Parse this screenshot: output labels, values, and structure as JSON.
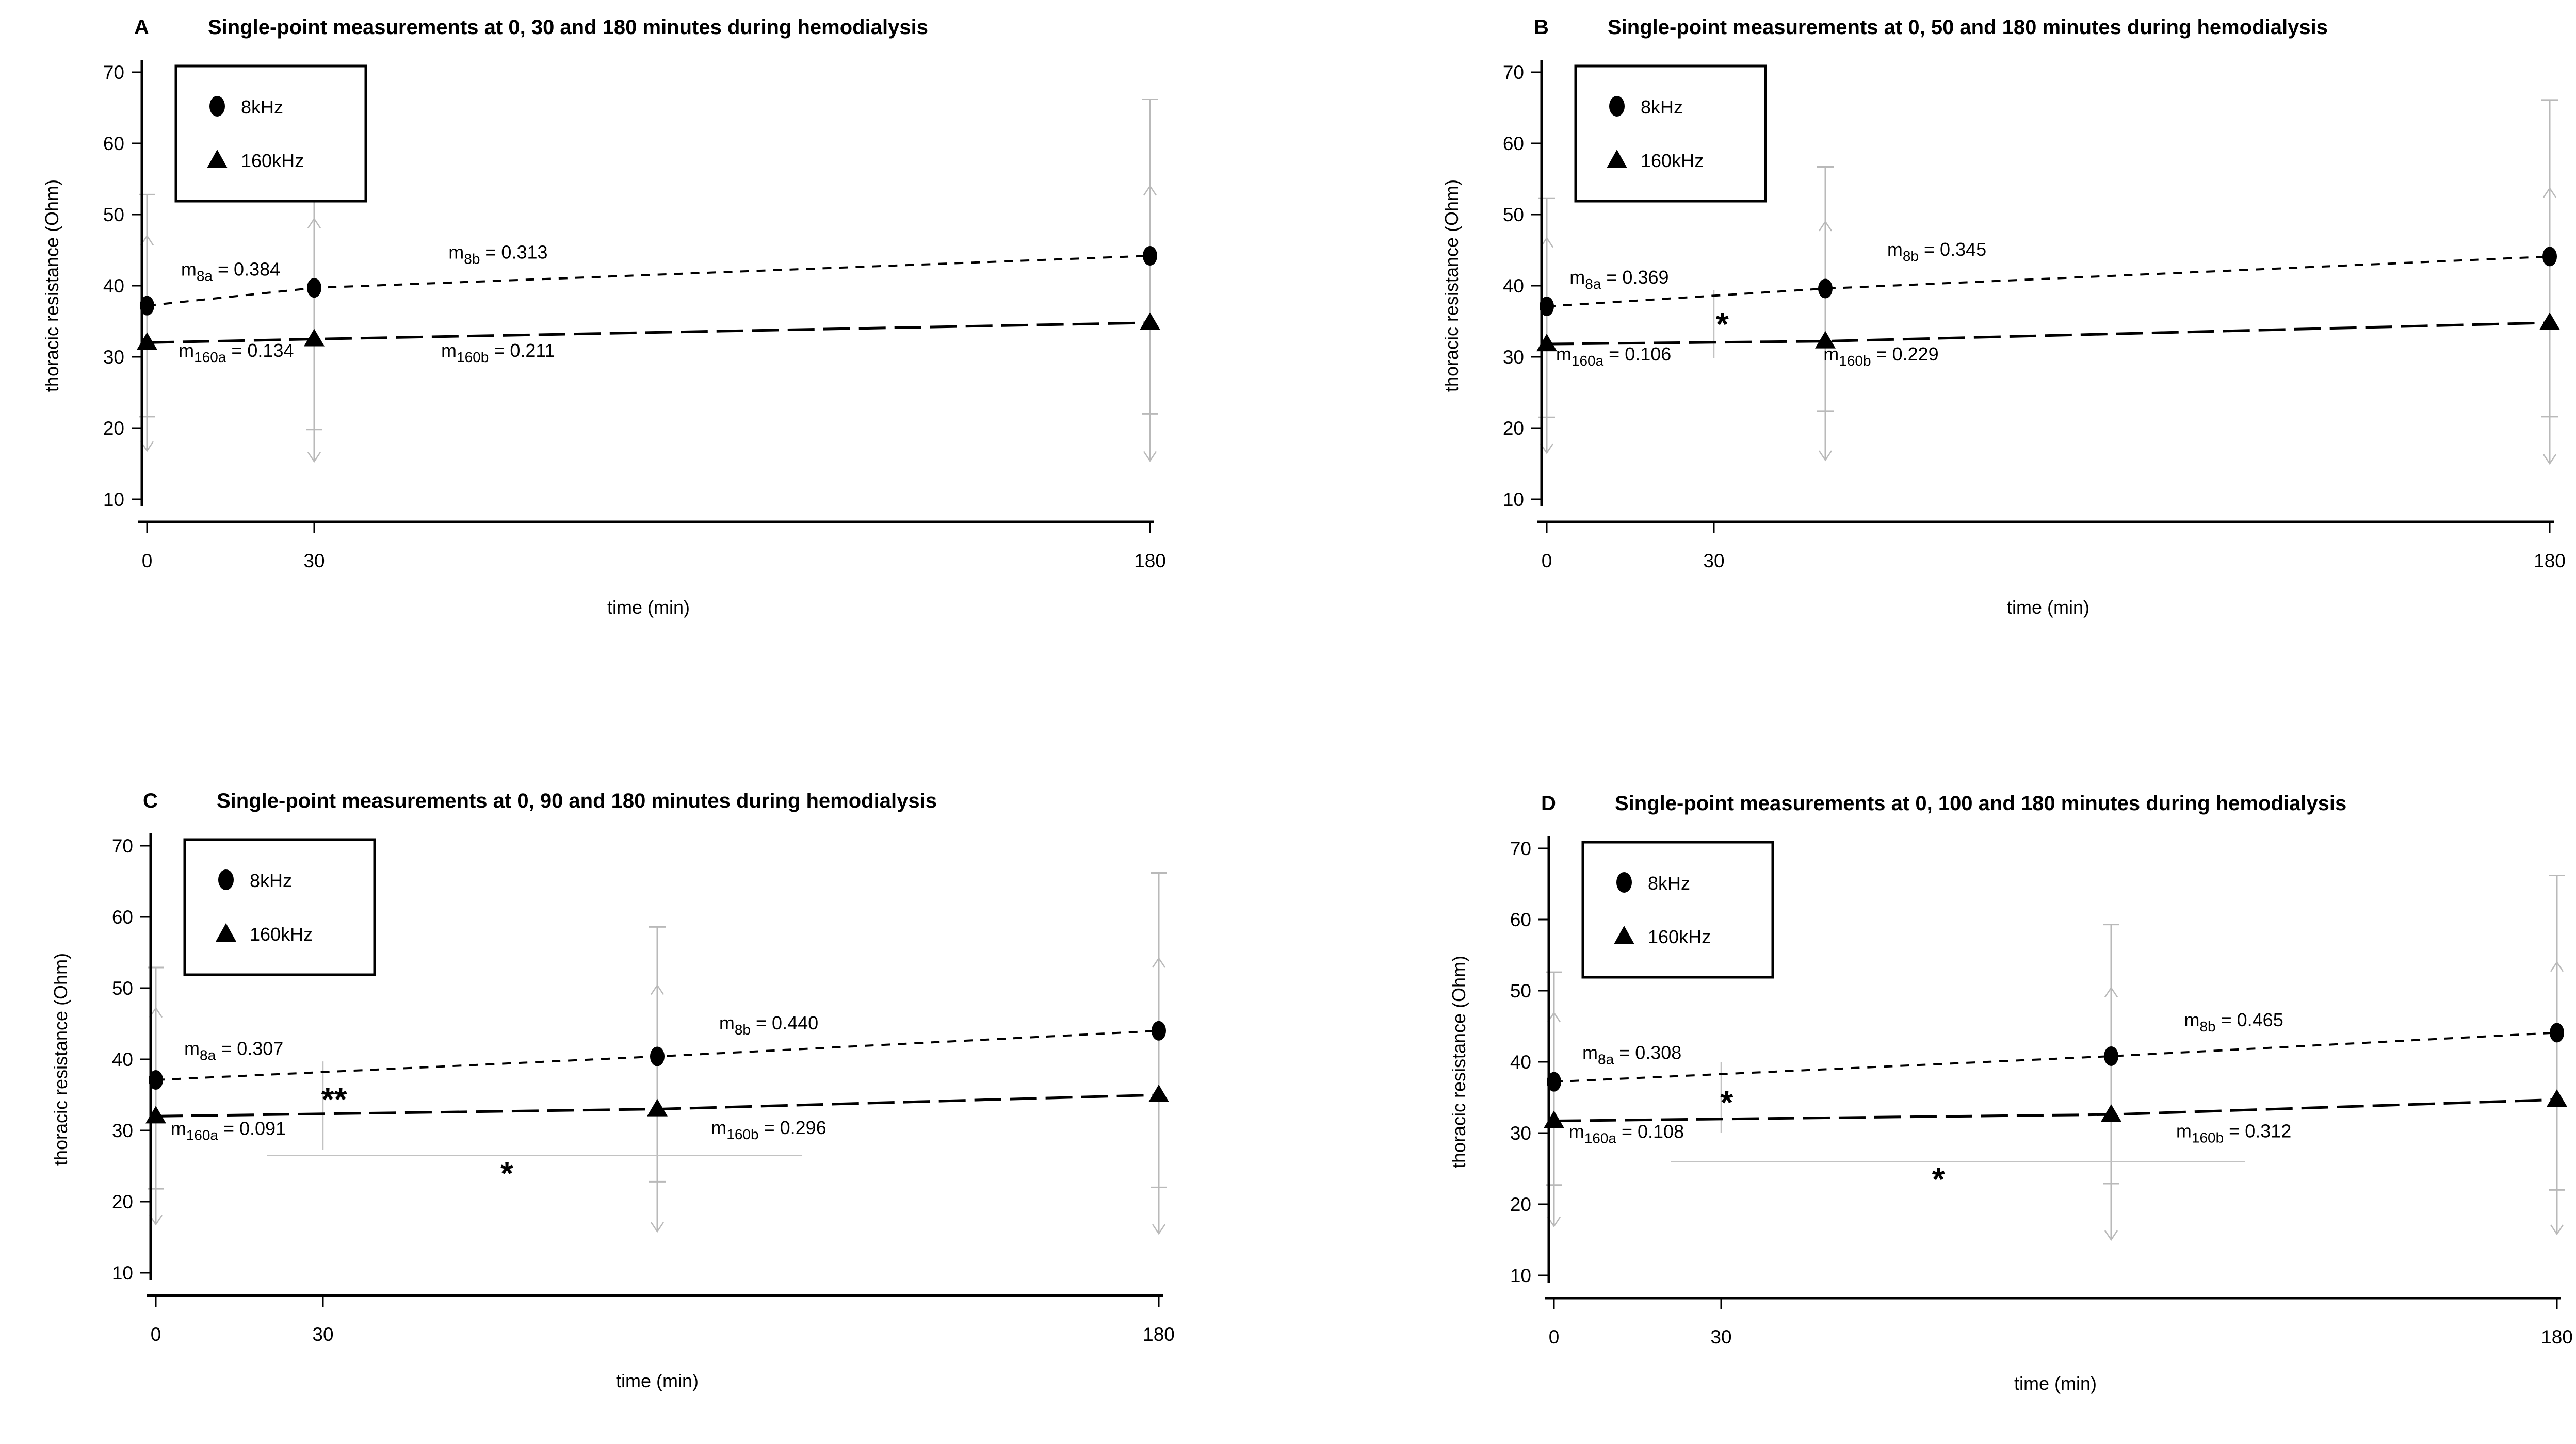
{
  "figure": {
    "x_axis_label": "time (min)",
    "y_axis_label": "thoracic resistance (Ohm)",
    "x_tick_labels": [
      "0",
      "30",
      "180"
    ],
    "y_tick_labels": [
      "70",
      "60",
      "50",
      "40",
      "30",
      "20",
      "10"
    ],
    "legend": {
      "items": [
        {
          "marker": "circle-icon",
          "label": "8kHz"
        },
        {
          "marker": "triangle-icon",
          "label": "160kHz"
        }
      ]
    },
    "colors": {
      "series": "#000000",
      "error_bar": "#b9b9b9",
      "significance_line": "#c2c2c2",
      "text": "#000000",
      "background": "#ffffff"
    }
  },
  "chart_data": [
    {
      "type": "line",
      "panel_label": "A",
      "title": "Single-point measurements at 0, 30 and 180 minutes during hemodialysis",
      "xlabel": "time (min)",
      "ylabel": "thoracic resistance (Ohm)",
      "xlim": [
        0,
        180
      ],
      "ylim": [
        10,
        70
      ],
      "x_ticks": [
        0,
        30,
        180
      ],
      "y_ticks": [
        70,
        60,
        50,
        40,
        30,
        20,
        10
      ],
      "series": [
        {
          "name": "8kHz",
          "marker": "circle",
          "line_style": "dashed",
          "error_end": "flat",
          "x": [
            0,
            30,
            180
          ],
          "y": [
            37.2,
            39.7,
            44.2
          ],
          "err_low": [
            21.6,
            19.8,
            22.0
          ],
          "err_high": [
            52.8,
            59.3,
            66.2
          ]
        },
        {
          "name": "160kHz",
          "marker": "triangle",
          "line_style": "longdash",
          "error_end": "arrow",
          "x": [
            0,
            30,
            180
          ],
          "y": [
            32.0,
            32.5,
            34.8
          ],
          "err_low": [
            16.8,
            15.3,
            15.4
          ],
          "err_high": [
            47.0,
            49.4,
            54.0
          ]
        }
      ],
      "slope_labels": [
        {
          "name": "m8a",
          "sub": "8a",
          "value": "0.384",
          "t": 15,
          "v": 41.4
        },
        {
          "name": "m8b",
          "sub": "8b",
          "value": "0.313",
          "t": 63,
          "v": 43.8
        },
        {
          "name": "m160a",
          "sub": "160a",
          "value": "0.134",
          "t": 16,
          "v": 30.0
        },
        {
          "name": "m160b",
          "sub": "160b",
          "value": "0.211",
          "t": 63,
          "v": 30.0
        }
      ],
      "significance": []
    },
    {
      "type": "line",
      "panel_label": "B",
      "title": "Single-point measurements at 0, 50 and 180 minutes during hemodialysis",
      "xlabel": "time (min)",
      "ylabel": "thoracic resistance (Ohm)",
      "xlim": [
        0,
        180
      ],
      "ylim": [
        10,
        70
      ],
      "x_ticks": [
        0,
        30,
        180
      ],
      "y_ticks": [
        70,
        60,
        50,
        40,
        30,
        20,
        10
      ],
      "series": [
        {
          "name": "8kHz",
          "marker": "circle",
          "line_style": "dashed",
          "error_end": "flat",
          "x": [
            0,
            50,
            180
          ],
          "y": [
            37.1,
            39.6,
            44.1
          ],
          "err_low": [
            21.5,
            22.4,
            21.6
          ],
          "err_high": [
            52.3,
            56.7,
            66.1
          ]
        },
        {
          "name": "160kHz",
          "marker": "triangle",
          "line_style": "longdash",
          "error_end": "arrow",
          "x": [
            0,
            50,
            180
          ],
          "y": [
            31.8,
            32.2,
            34.8
          ],
          "err_low": [
            16.5,
            15.5,
            15.0
          ],
          "err_high": [
            46.7,
            49.0,
            53.7
          ]
        }
      ],
      "slope_labels": [
        {
          "name": "m8a",
          "sub": "8a",
          "value": "0.369",
          "t": 13,
          "v": 40.3
        },
        {
          "name": "m8b",
          "sub": "8b",
          "value": "0.345",
          "t": 70,
          "v": 44.2
        },
        {
          "name": "m160a",
          "sub": "160a",
          "value": "0.106",
          "t": 12,
          "v": 29.5
        },
        {
          "name": "m160b",
          "sub": "160b",
          "value": "0.229",
          "t": 60,
          "v": 29.5
        }
      ],
      "significance": [
        {
          "kind": "vline",
          "t": 30,
          "v1": 29.8,
          "v2": 39.4
        },
        {
          "kind": "stars",
          "text": "*",
          "t": 31.5,
          "v": 34.6
        }
      ]
    },
    {
      "type": "line",
      "panel_label": "C",
      "title": "Single-point measurements at 0, 90 and 180 minutes during hemodialysis",
      "xlabel": "time (min)",
      "ylabel": "thoracic resistance (Ohm)",
      "xlim": [
        0,
        180
      ],
      "ylim": [
        10,
        70
      ],
      "x_ticks": [
        0,
        30,
        180
      ],
      "y_ticks": [
        70,
        60,
        50,
        40,
        30,
        20,
        10
      ],
      "series": [
        {
          "name": "8kHz",
          "marker": "circle",
          "line_style": "dashed",
          "error_end": "flat",
          "x": [
            0,
            90,
            180
          ],
          "y": [
            37.1,
            40.4,
            44.0
          ],
          "err_low": [
            21.8,
            22.8,
            22.0
          ],
          "err_high": [
            52.9,
            58.6,
            66.2
          ]
        },
        {
          "name": "160kHz",
          "marker": "triangle",
          "line_style": "longdash",
          "error_end": "arrow",
          "x": [
            0,
            90,
            180
          ],
          "y": [
            32.0,
            33.0,
            35.0
          ],
          "err_low": [
            16.8,
            15.8,
            15.5
          ],
          "err_high": [
            47.2,
            50.4,
            54.2
          ]
        }
      ],
      "slope_labels": [
        {
          "name": "m8a",
          "sub": "8a",
          "value": "0.307",
          "t": 14,
          "v": 40.6
        },
        {
          "name": "m8b",
          "sub": "8b",
          "value": "0.440",
          "t": 110,
          "v": 44.2
        },
        {
          "name": "m160a",
          "sub": "160a",
          "value": "0.091",
          "t": 13,
          "v": 29.4
        },
        {
          "name": "m160b",
          "sub": "160b",
          "value": "0.296",
          "t": 110,
          "v": 29.5
        }
      ],
      "significance": [
        {
          "kind": "vline",
          "t": 30,
          "v1": 27.3,
          "v2": 39.7
        },
        {
          "kind": "stars",
          "text": "**",
          "t": 32,
          "v": 34.4
        },
        {
          "kind": "hline",
          "t1": 20,
          "t2": 116,
          "v": 26.5
        },
        {
          "kind": "stars",
          "text": "*",
          "t": 63,
          "v": 24.0
        }
      ]
    },
    {
      "type": "line",
      "panel_label": "D",
      "title": "Single-point measurements at 0, 100 and 180 minutes during hemodialysis",
      "xlabel": "time (min)",
      "ylabel": "thoracic resistance (Ohm)",
      "xlim": [
        0,
        180
      ],
      "ylim": [
        10,
        70
      ],
      "x_ticks": [
        0,
        30,
        180
      ],
      "y_ticks": [
        70,
        60,
        50,
        40,
        30,
        20,
        10
      ],
      "series": [
        {
          "name": "8kHz",
          "marker": "circle",
          "line_style": "dashed",
          "error_end": "flat",
          "x": [
            0,
            100,
            180
          ],
          "y": [
            37.2,
            40.8,
            44.1
          ],
          "err_low": [
            22.7,
            22.9,
            22.0
          ],
          "err_high": [
            52.6,
            59.3,
            66.2
          ]
        },
        {
          "name": "160kHz",
          "marker": "triangle",
          "line_style": "longdash",
          "error_end": "arrow",
          "x": [
            0,
            100,
            180
          ],
          "y": [
            31.7,
            32.6,
            34.7
          ],
          "err_low": [
            16.9,
            15.0,
            15.8
          ],
          "err_high": [
            46.9,
            50.4,
            54.0
          ]
        }
      ],
      "slope_labels": [
        {
          "name": "m8a",
          "sub": "8a",
          "value": "0.308",
          "t": 14,
          "v": 40.4
        },
        {
          "name": "m8b",
          "sub": "8b",
          "value": "0.465",
          "t": 122,
          "v": 45.0
        },
        {
          "name": "m160a",
          "sub": "160a",
          "value": "0.108",
          "t": 13,
          "v": 29.3
        },
        {
          "name": "m160b",
          "sub": "160b",
          "value": "0.312",
          "t": 122,
          "v": 29.4
        }
      ],
      "significance": [
        {
          "kind": "vline",
          "t": 30,
          "v1": 30.0,
          "v2": 40.0
        },
        {
          "kind": "stars",
          "text": "*",
          "t": 31,
          "v": 34.3
        },
        {
          "kind": "hline",
          "t1": 21,
          "t2": 124,
          "v": 26.0
        },
        {
          "kind": "stars",
          "text": "*",
          "t": 69,
          "v": 23.5
        }
      ]
    }
  ]
}
